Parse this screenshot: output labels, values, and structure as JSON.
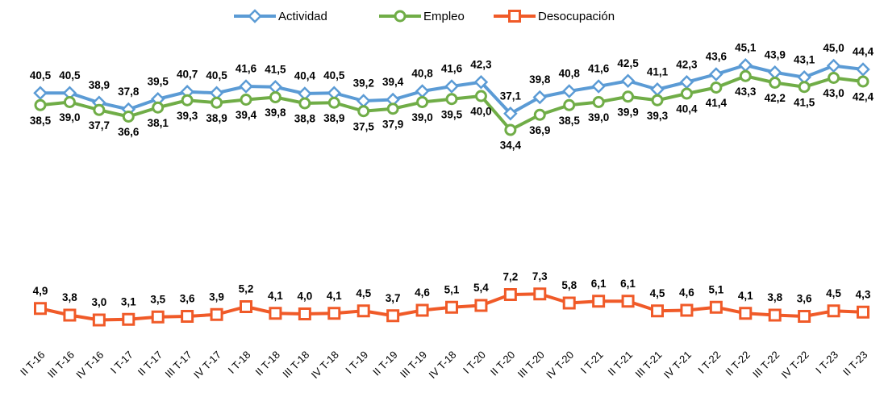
{
  "chart_data": {
    "type": "line",
    "categories": [
      "II T-16",
      "III T-16",
      "IV T-16",
      "I T-17",
      "II T-17",
      "III T-17",
      "IV T-17",
      "I T-18",
      "II T-18",
      "III T-18",
      "IV T-18",
      "I T-19",
      "II T-19",
      "III T-19",
      "IV T-18",
      "I T-20",
      "II T-20",
      "III T-20",
      "IV T-20",
      "I T-21",
      "II T-21",
      "III T-21",
      "IV T-21",
      "I T-22",
      "II T-22",
      "III T-22",
      "IV T-22",
      "I T-23",
      "II T-23"
    ],
    "ylim": [
      0,
      50
    ],
    "legend": "top",
    "series": [
      {
        "name": "Actividad",
        "color": "#5b9bd5",
        "marker": "diamond",
        "label_position": "above",
        "values": [
          40.5,
          40.5,
          38.9,
          37.8,
          39.5,
          40.7,
          40.5,
          41.6,
          41.5,
          40.4,
          40.5,
          39.2,
          39.4,
          40.8,
          41.6,
          42.3,
          37.1,
          39.8,
          40.8,
          41.6,
          42.5,
          41.1,
          42.3,
          43.6,
          45.1,
          43.9,
          43.1,
          45.0,
          44.4
        ],
        "value_labels": [
          "40,5",
          "40,5",
          "38,9",
          "37,8",
          "39,5",
          "40,7",
          "40,5",
          "41,6",
          "41,5",
          "40,4",
          "40,5",
          "39,2",
          "39,4",
          "40,8",
          "41,6",
          "42,3",
          "37,1",
          "39,8",
          "40,8",
          "41,6",
          "42,5",
          "41,1",
          "42,3",
          "43,6",
          "45,1",
          "43,9",
          "43,1",
          "45,0",
          "44,4"
        ]
      },
      {
        "name": "Empleo",
        "color": "#70ad47",
        "marker": "circle",
        "label_position": "below",
        "values": [
          38.5,
          39.0,
          37.7,
          36.6,
          38.1,
          39.3,
          38.9,
          39.4,
          39.8,
          38.8,
          38.9,
          37.5,
          37.9,
          39.0,
          39.5,
          40.0,
          34.4,
          36.9,
          38.5,
          39.0,
          39.9,
          39.3,
          40.4,
          41.4,
          43.3,
          42.2,
          41.5,
          43.0,
          42.4
        ],
        "value_labels": [
          "38,5",
          "39,0",
          "37,7",
          "36,6",
          "38,1",
          "39,3",
          "38,9",
          "39,4",
          "39,8",
          "38,8",
          "38,9",
          "37,5",
          "37,9",
          "39,0",
          "39,5",
          "40,0",
          "34,4",
          "36,9",
          "38,5",
          "39,0",
          "39,9",
          "39,3",
          "40,4",
          "41,4",
          "43,3",
          "42,2",
          "41,5",
          "43,0",
          "42,4"
        ]
      },
      {
        "name": "Desocupación",
        "color": "#f05a28",
        "marker": "square",
        "label_position": "above",
        "values": [
          4.9,
          3.8,
          3.0,
          3.1,
          3.5,
          3.6,
          3.9,
          5.2,
          4.1,
          4.0,
          4.1,
          4.5,
          3.7,
          4.6,
          5.1,
          5.4,
          7.2,
          7.3,
          5.8,
          6.1,
          6.1,
          4.5,
          4.6,
          5.1,
          4.1,
          3.8,
          3.6,
          4.5,
          4.3
        ],
        "value_labels": [
          "4,9",
          "3,8",
          "3,0",
          "3,1",
          "3,5",
          "3,6",
          "3,9",
          "5,2",
          "4,1",
          "4,0",
          "4,1",
          "4,5",
          "3,7",
          "4,6",
          "5,1",
          "5,4",
          "7,2",
          "7,3",
          "5,8",
          "6,1",
          "6,1",
          "4,5",
          "4,6",
          "5,1",
          "4,1",
          "3,8",
          "3,6",
          "4,5",
          "4,3"
        ]
      }
    ]
  }
}
